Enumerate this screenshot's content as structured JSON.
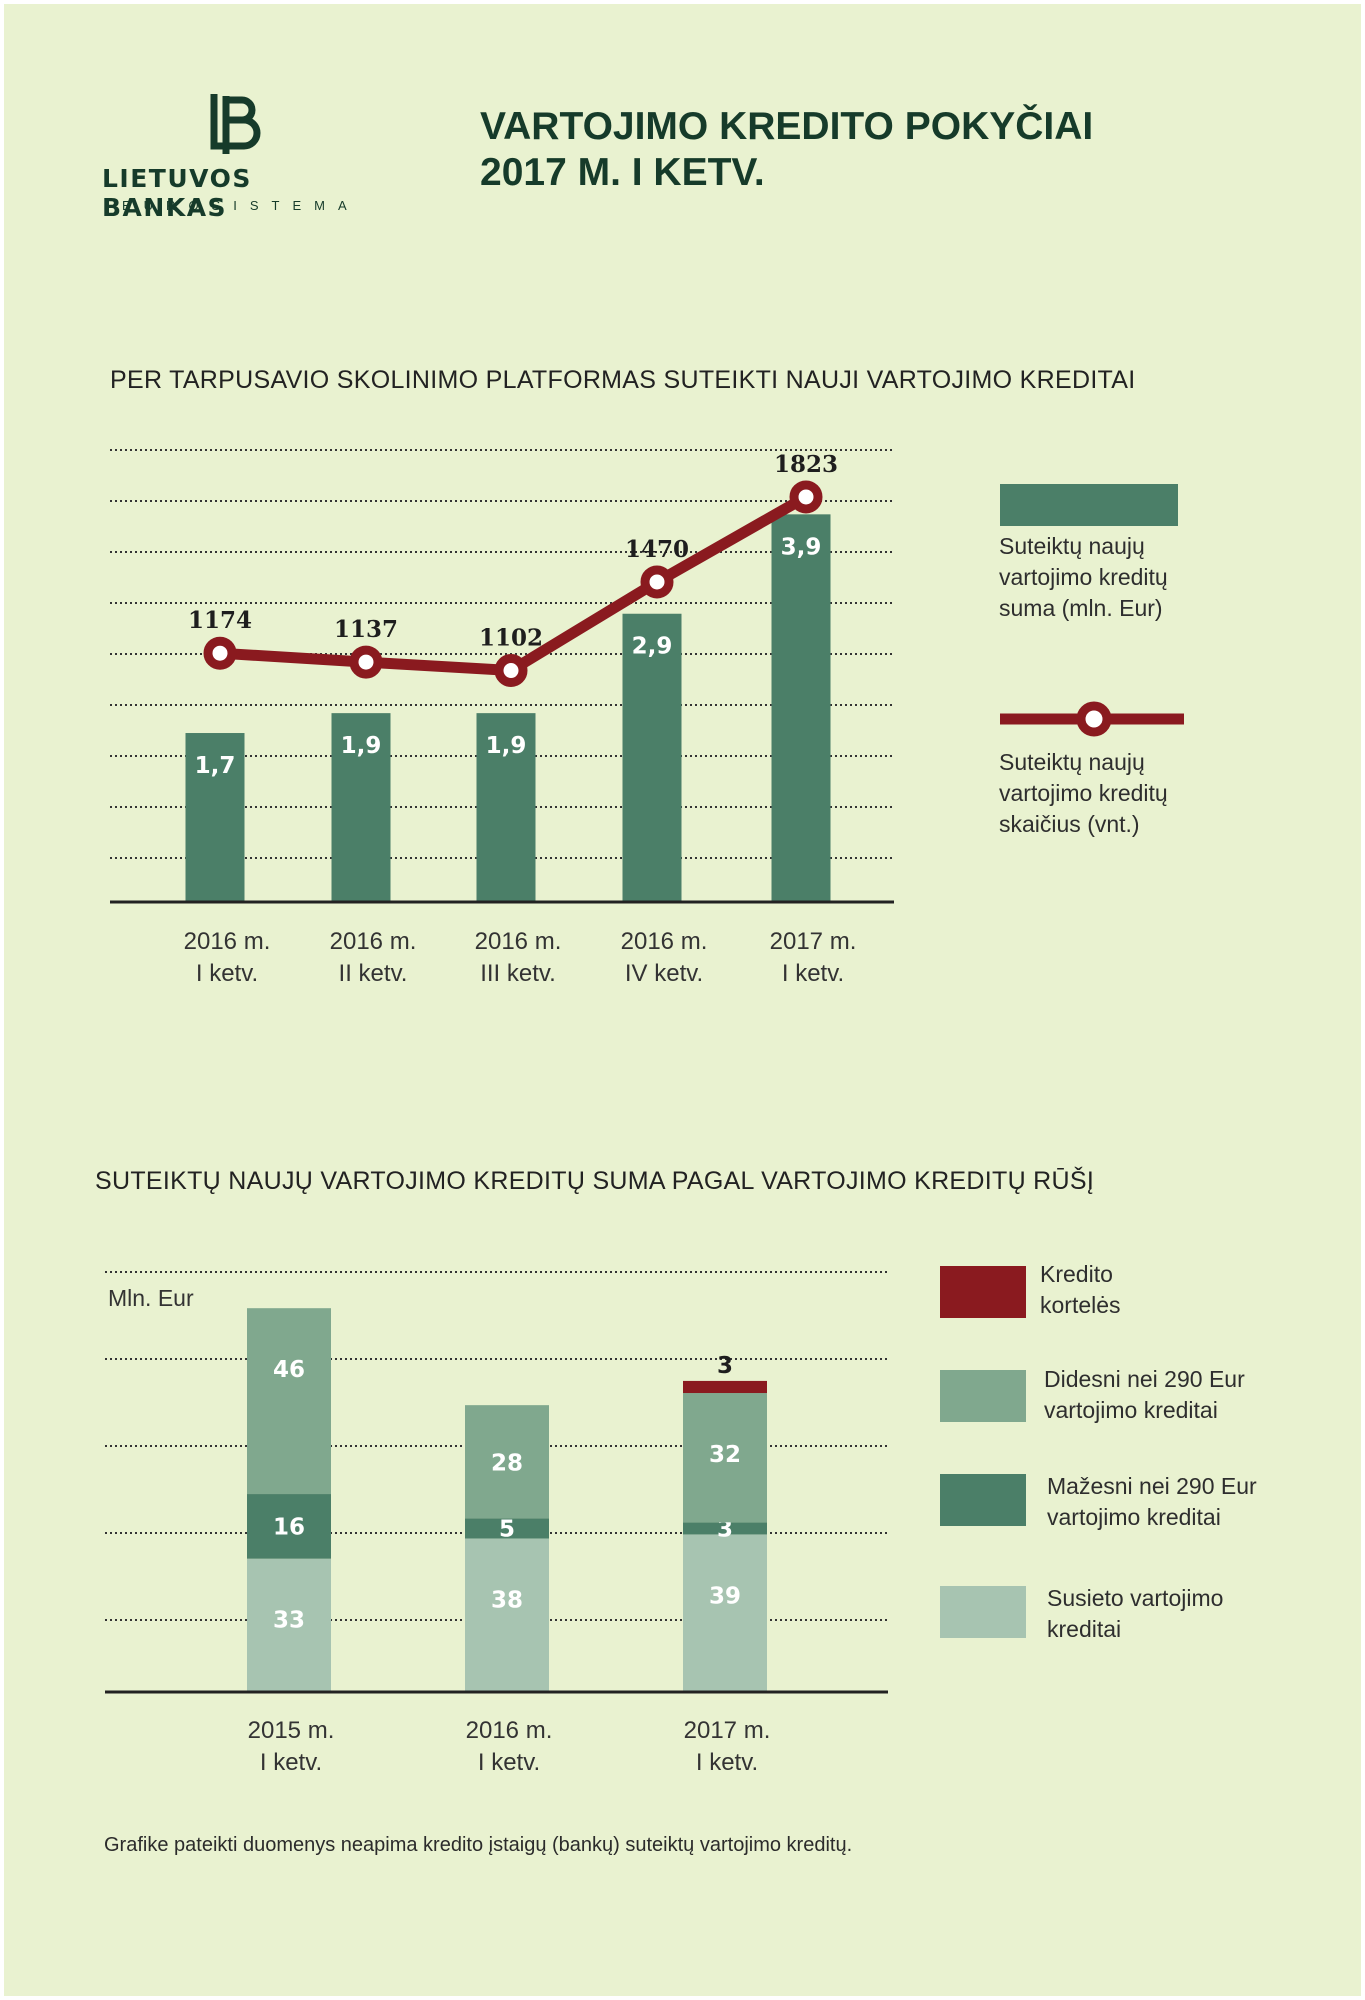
{
  "header": {
    "logo_name": "LIETUVOS BANKAS",
    "logo_sub": "EUROSISTEMA",
    "title_line1": "VARTOJIMO KREDITO POKYČIAI",
    "title_line2": "2017 M. I KETV."
  },
  "colors": {
    "background": "#e9f2d0",
    "bar_dark": "#4b7f68",
    "bar_mid": "#80a88e",
    "bar_light": "#a7c4b1",
    "accent_red": "#8a1a1f",
    "text_dark": "#163b2a"
  },
  "chart_data": [
    {
      "type": "bar",
      "title": "PER TARPUSAVIO SKOLINIMO PLATFORMAS SUTEIKTI NAUJI VARTOJIMO KREDITAI",
      "categories": [
        [
          "2016 m.",
          "I ketv."
        ],
        [
          "2016 m.",
          "II ketv."
        ],
        [
          "2016 m.",
          "III ketv."
        ],
        [
          "2016 m.",
          "IV ketv."
        ],
        [
          "2017 m.",
          "I ketv."
        ]
      ],
      "series": [
        {
          "name": "Suteiktų naujų vartojimo kreditų suma (mln. Eur)",
          "kind": "bar",
          "values": [
            1.7,
            1.9,
            1.9,
            2.9,
            3.9
          ],
          "labels": [
            "1,7",
            "1,9",
            "1,9",
            "2,9",
            "3,9"
          ]
        },
        {
          "name": "Suteiktų naujų vartojimo kreditų skaičius (vnt.)",
          "kind": "line",
          "values": [
            1174,
            1137,
            1102,
            1470,
            1823
          ],
          "labels": [
            "1174",
            "1137",
            "1102",
            "1470",
            "1823"
          ]
        }
      ],
      "legend": [
        [
          "Suteiktų naujų",
          "vartojimo kreditų",
          "suma (mln. Eur)"
        ],
        [
          "Suteiktų naujų",
          "vartojimo kreditų",
          "skaičius (vnt.)"
        ]
      ],
      "legend_position": "right",
      "grid": true
    },
    {
      "type": "bar",
      "stacked": true,
      "title": "SUTEIKTŲ NAUJŲ VARTOJIMO KREDITŲ SUMA PAGAL VARTOJIMO KREDITŲ RŪŠĮ",
      "ylabel": "Mln. Eur",
      "categories": [
        [
          "2015 m.",
          "I ketv."
        ],
        [
          "2016 m.",
          "I ketv."
        ],
        [
          "2017 m.",
          "I ketv."
        ]
      ],
      "series": [
        {
          "name": "Susieto vartojimo kreditai",
          "values": [
            33,
            38,
            39
          ]
        },
        {
          "name": "Mažesni nei 290 Eur vartojimo kreditai",
          "values": [
            16,
            5,
            3
          ]
        },
        {
          "name": "Didesni nei 290 Eur vartojimo kreditai",
          "values": [
            46,
            28,
            32
          ]
        },
        {
          "name": "Kredito kortelės",
          "values": [
            0,
            0,
            3
          ]
        }
      ],
      "legend": [
        [
          "Kredito",
          "kortelės"
        ],
        [
          "Didesni nei 290 Eur",
          "vartojimo kreditai"
        ],
        [
          "Mažesni nei 290 Eur",
          "vartojimo kreditai"
        ],
        [
          "Susieto vartojimo",
          "kreditai"
        ]
      ],
      "legend_position": "right",
      "grid": true
    }
  ],
  "footnote": "Grafike pateikti duomenys neapima kredito įstaigų (bankų) suteiktų vartojimo kreditų."
}
